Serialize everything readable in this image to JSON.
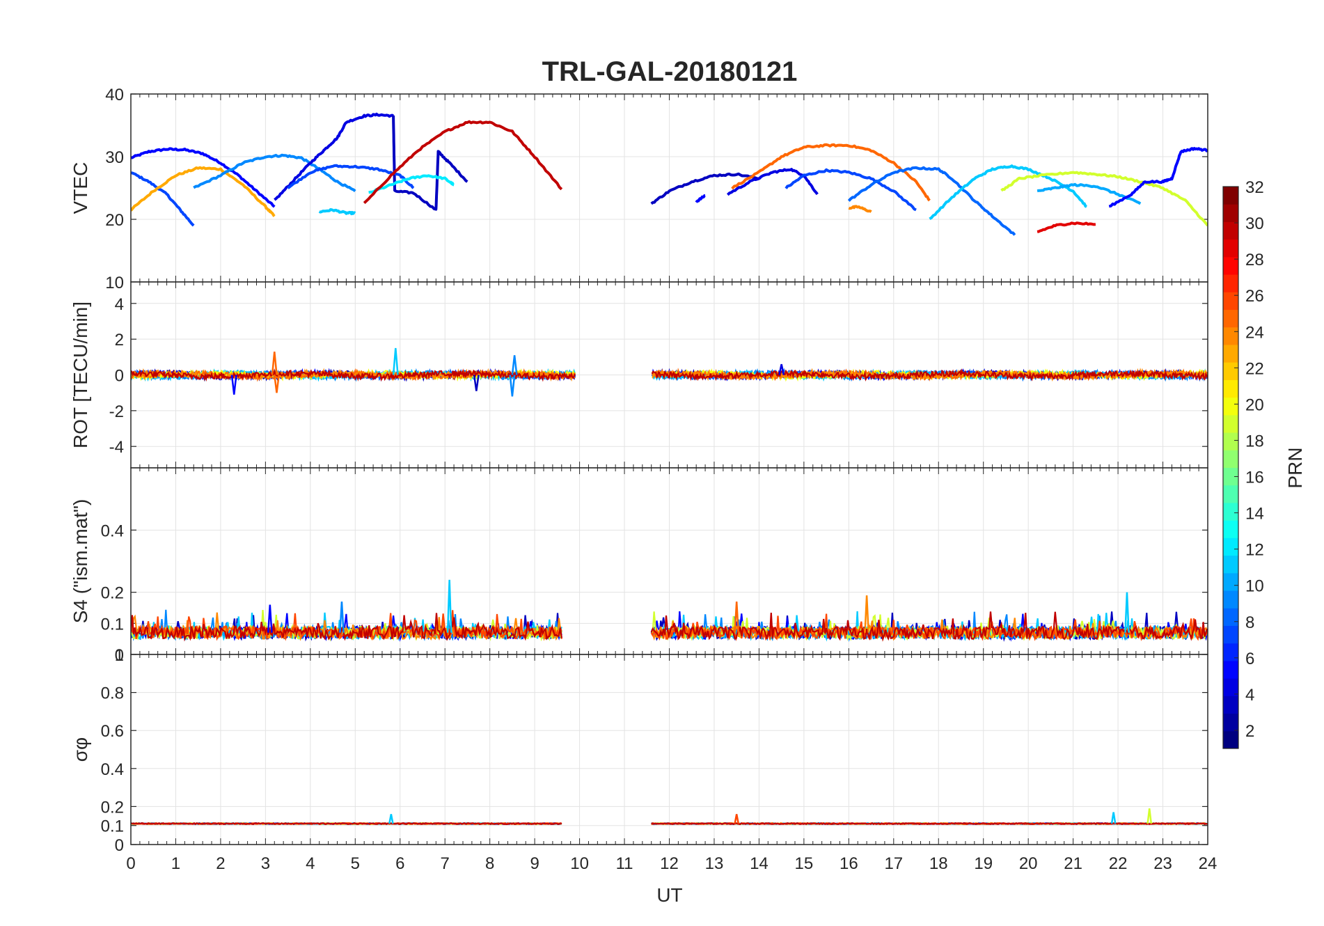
{
  "chart_data": {
    "title": "TRL-GAL-20180121",
    "x": {
      "label": "UT",
      "range": [
        0,
        24
      ],
      "ticks": [
        "0",
        "1",
        "2",
        "3",
        "4",
        "5",
        "6",
        "7",
        "8",
        "9",
        "10",
        "11",
        "12",
        "13",
        "14",
        "15",
        "16",
        "17",
        "18",
        "19",
        "20",
        "21",
        "22",
        "23",
        "24"
      ]
    },
    "panels": [
      {
        "id": "vtec",
        "type": "line",
        "ylabel": "VTEC",
        "ylim": [
          10,
          40
        ],
        "yticks": [
          "10",
          "20",
          "30",
          "40"
        ],
        "grid": true,
        "series": [
          {
            "prn": 5,
            "x": [
              0,
              0.4,
              0.8,
              1.2,
              1.6,
              2,
              2.4,
              2.8,
              3.2
            ],
            "y": [
              29.8,
              30.8,
              31.2,
              31.1,
              30.5,
              29,
              27,
              24.5,
              22
            ]
          },
          {
            "prn": 7,
            "x": [
              0,
              0.4,
              0.8,
              1.1,
              1.4
            ],
            "y": [
              27.5,
              26,
              24,
              21.5,
              19
            ]
          },
          {
            "prn": 23,
            "x": [
              0,
              0.5,
              1,
              1.5,
              2,
              2.5,
              3,
              3.2
            ],
            "y": [
              21.5,
              24.5,
              27,
              28.2,
              28,
              25.5,
              22,
              20.5
            ]
          },
          {
            "prn": 9,
            "x": [
              1.4,
              2,
              2.5,
              3,
              3.4,
              3.8,
              4.2,
              4.6,
              5
            ],
            "y": [
              25,
              27,
              29,
              30,
              30.2,
              29.8,
              28,
              26,
              24.5
            ]
          },
          {
            "prn": 4,
            "x": [
              3.2,
              3.6,
              4,
              4.3,
              4.6,
              4.8,
              5.2,
              5.5,
              5.85
            ],
            "y": [
              23,
              26,
              29,
              31,
              33,
              35.5,
              36.5,
              36.7,
              36.5
            ]
          },
          {
            "prn": 3,
            "x": [
              5.85,
              5.88,
              6.3,
              6.8,
              6.85,
              7.1,
              7.5
            ],
            "y": [
              36.5,
              24.5,
              24.2,
              21.5,
              30.8,
              29,
              26
            ]
          },
          {
            "prn": 7,
            "x": [
              3.5,
              4,
              4.5,
              5,
              5.5,
              6,
              6.3
            ],
            "y": [
              25,
              27.5,
              28.5,
              28.4,
              28,
              27,
              25
            ]
          },
          {
            "prn": 11,
            "x": [
              4.2,
              4.5,
              4.8,
              5
            ],
            "y": [
              21.2,
              21.5,
              21,
              21
            ]
          },
          {
            "prn": 12,
            "x": [
              5.3,
              5.8,
              6.2,
              6.6,
              7,
              7.2
            ],
            "y": [
              24.2,
              25.5,
              26.5,
              27,
              26.5,
              25.5
            ]
          },
          {
            "prn": 30,
            "x": [
              5.2,
              5.8,
              6.4,
              7,
              7.5,
              8,
              8.5,
              9,
              9.6
            ],
            "y": [
              22.5,
              27,
              31,
              34,
              35.5,
              35.5,
              34,
              30,
              24.8
            ]
          },
          {
            "prn": 3,
            "x": [
              11.6,
              12,
              12.5,
              13,
              13.5,
              14
            ],
            "y": [
              22.5,
              24.5,
              26,
              27,
              27.2,
              26.5
            ]
          },
          {
            "prn": 5,
            "x": [
              12.6,
              12.8
            ],
            "y": [
              22.8,
              23.8
            ]
          },
          {
            "prn": 4,
            "x": [
              13.3,
              13.8,
              14.3,
              14.7,
              15,
              15.3
            ],
            "y": [
              24,
              26,
              27.5,
              28,
              27,
              24
            ]
          },
          {
            "prn": 25,
            "x": [
              13.4,
              14,
              14.5,
              15,
              15.5,
              16,
              16.5,
              17,
              17.5,
              17.8
            ],
            "y": [
              25,
              27.5,
              30,
              31.5,
              31.8,
              31.8,
              31,
              29,
              26,
              23
            ]
          },
          {
            "prn": 7,
            "x": [
              14.6,
              15,
              15.5,
              16,
              16.5,
              17,
              17.5
            ],
            "y": [
              25,
              27,
              27.8,
              27.5,
              26.5,
              24.5,
              21.5
            ]
          },
          {
            "prn": 24,
            "x": [
              16,
              16.2,
              16.5
            ],
            "y": [
              21.8,
              22,
              21.2
            ]
          },
          {
            "prn": 8,
            "x": [
              16,
              16.5,
              17,
              17.5,
              18,
              18.3,
              18.8,
              19.2,
              19.7
            ],
            "y": [
              23,
              25.5,
              27.5,
              28.2,
              28,
              26.5,
              23,
              20.5,
              17.5
            ]
          },
          {
            "prn": 11,
            "x": [
              17.8,
              18.3,
              18.8,
              19.2,
              19.6,
              20,
              20.5,
              21,
              21.3
            ],
            "y": [
              20,
              23.5,
              26.5,
              28,
              28.5,
              28,
              26.5,
              24.5,
              22
            ]
          },
          {
            "prn": 19,
            "x": [
              19.4,
              19.8,
              20.3,
              21,
              21.5,
              22,
              22.5,
              23,
              23.5,
              24
            ],
            "y": [
              24.5,
              26.5,
              27,
              27.5,
              27.2,
              26.8,
              26,
              25,
              23,
              19
            ]
          },
          {
            "prn": 10,
            "x": [
              20.2,
              20.6,
              21,
              21.5,
              22,
              22.5
            ],
            "y": [
              24.5,
              25,
              25.5,
              25.3,
              24,
              22.5
            ]
          },
          {
            "prn": 29,
            "x": [
              20.2,
              20.6,
              21,
              21.5
            ],
            "y": [
              18,
              19,
              19.4,
              19.2
            ]
          },
          {
            "prn": 5,
            "x": [
              21.8,
              22.3,
              22.6,
              23,
              23.2,
              23.4,
              23.7,
              24
            ],
            "y": [
              22,
              24,
              26,
              26,
              26.5,
              30.8,
              31.3,
              31
            ]
          }
        ]
      },
      {
        "id": "rot",
        "type": "line",
        "ylabel": "ROT [TECU/min]",
        "ylim": [
          -5.2,
          5.2
        ],
        "yticks": [
          "-4",
          "-2",
          "0",
          "2",
          "4"
        ],
        "grid": true,
        "baseline": 0,
        "noise_amplitude": 0.2,
        "bursts": [
          {
            "x": 3.2,
            "y": 1.3,
            "prn": 25
          },
          {
            "x": 3.25,
            "y": -1.0,
            "prn": 25
          },
          {
            "x": 2.3,
            "y": -1.1,
            "prn": 5
          },
          {
            "x": 5.9,
            "y": 1.5,
            "prn": 11
          },
          {
            "x": 8.55,
            "y": 1.1,
            "prn": 9
          },
          {
            "x": 8.5,
            "y": -1.2,
            "prn": 9
          },
          {
            "x": 7.7,
            "y": -0.9,
            "prn": 3
          },
          {
            "x": 14.5,
            "y": 0.6,
            "prn": 4
          }
        ]
      },
      {
        "id": "s4",
        "type": "line",
        "ylabel": "S4 (\"ism.mat\")",
        "ylim": [
          0,
          0.6
        ],
        "yticks": [
          "0",
          "0.1",
          "0.2",
          "0.4"
        ],
        "grid": true,
        "segments": [
          [
            0,
            9.6
          ],
          [
            11.6,
            24
          ]
        ],
        "baseline": 0.07,
        "peaks": [
          {
            "x": 7.1,
            "y": 0.24,
            "prn": 11
          },
          {
            "x": 16.4,
            "y": 0.19,
            "prn": 24
          },
          {
            "x": 22.2,
            "y": 0.2,
            "prn": 11
          },
          {
            "x": 13.5,
            "y": 0.17,
            "prn": 25
          },
          {
            "x": 4.7,
            "y": 0.17,
            "prn": 9
          },
          {
            "x": 3.1,
            "y": 0.16,
            "prn": 5
          }
        ]
      },
      {
        "id": "sigma_phi",
        "type": "line",
        "ylabel": "σφ",
        "ylim": [
          0,
          1
        ],
        "yticks": [
          "0",
          "0.1",
          "0.2",
          "0.4",
          "0.6",
          "0.8",
          "1"
        ],
        "grid": true,
        "segments": [
          [
            0,
            9.6
          ],
          [
            11.6,
            24
          ]
        ],
        "baseline": 0.11,
        "peaks": [
          {
            "x": 5.8,
            "y": 0.16,
            "prn": 11
          },
          {
            "x": 22.7,
            "y": 0.19,
            "prn": 19
          },
          {
            "x": 21.9,
            "y": 0.17,
            "prn": 11
          },
          {
            "x": 13.5,
            "y": 0.16,
            "prn": 26
          }
        ]
      }
    ],
    "colorbar": {
      "label": "PRN",
      "range": [
        1,
        32
      ],
      "colormap": "jet",
      "ticks": [
        "2",
        "4",
        "6",
        "8",
        "10",
        "12",
        "14",
        "16",
        "18",
        "20",
        "22",
        "24",
        "26",
        "28",
        "30",
        "32"
      ]
    }
  }
}
